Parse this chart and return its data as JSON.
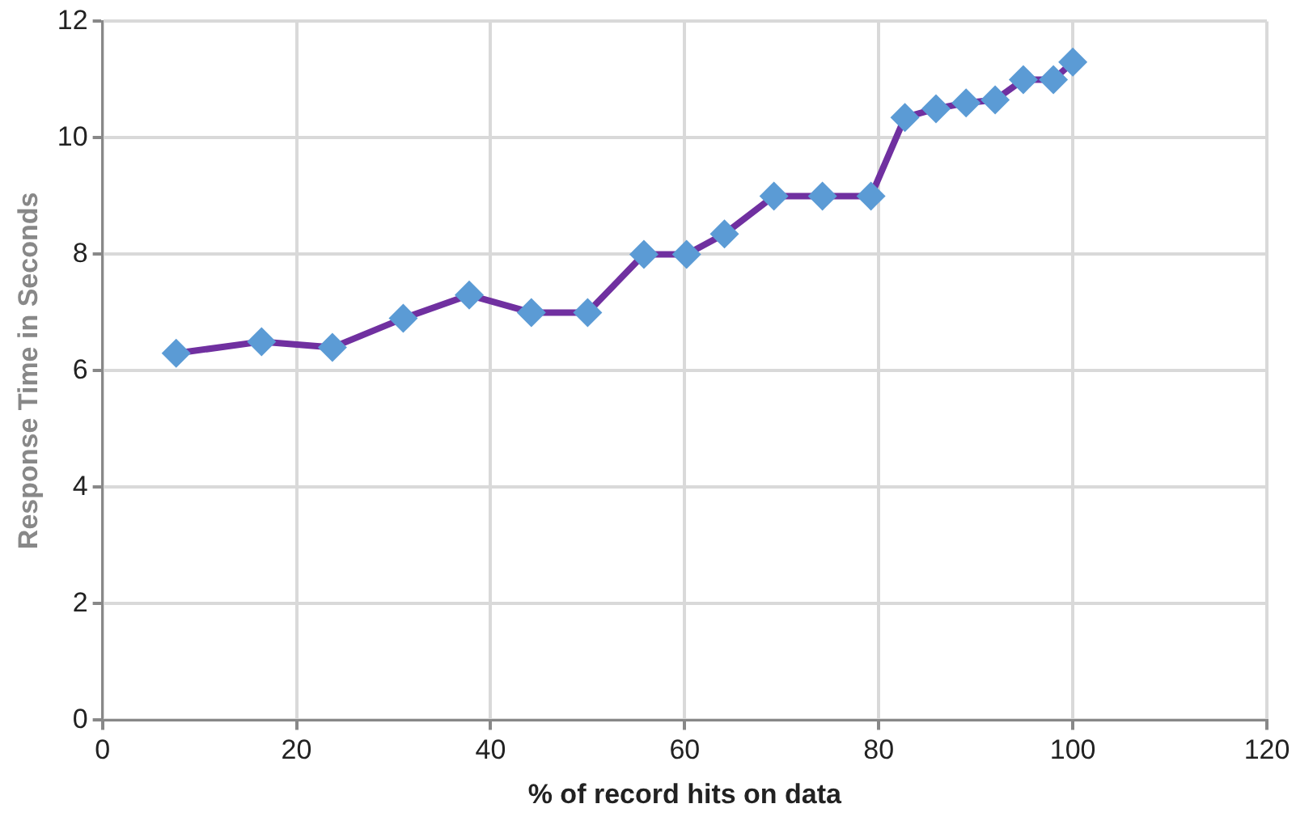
{
  "chart_data": {
    "type": "line",
    "xlabel": "% of record hits on data",
    "ylabel": "Response Time in Seconds",
    "x": [
      7.6,
      16.4,
      23.7,
      31,
      37.8,
      44.2,
      50,
      55.8,
      60.2,
      64.1,
      69.2,
      74.2,
      79.2,
      82.7,
      85.9,
      89,
      92,
      94.9,
      98,
      100
    ],
    "series": [
      {
        "color": "#7030a0",
        "values": [
          6.3,
          6.5,
          6.4,
          6.9,
          7.3,
          7,
          7,
          8,
          8,
          8.35,
          9,
          9,
          9,
          10.35,
          10.5,
          10.6,
          10.65,
          11,
          11,
          11.3
        ],
        "colors": [
          "#5b9bd5",
          "#5b9bd5",
          "#5b9bd5",
          "#5b9bd5",
          "#5b9bd5",
          "#5b9bd5",
          "#5b9bd5",
          "#5b9bd5",
          "#5b9bd5",
          "#5b9bd5",
          "#5b9bd5",
          "#5b9bd5",
          "#5b9bd5",
          "#5b9bd5",
          "#5b9bd5",
          "#5b9bd5",
          "#5b9bd5",
          "#5b9bd5",
          "#5b9bd5",
          "#5b9bd5"
        ]
      }
    ],
    "xlim": [
      0,
      120
    ],
    "xticks": [
      0,
      20,
      40,
      60,
      80,
      100,
      120
    ],
    "ylim": [
      0,
      12
    ],
    "yticks": [
      0,
      2,
      4,
      6,
      8,
      10,
      12
    ],
    "grid": true,
    "legend": false,
    "marker": "diamond",
    "line_style": "solid"
  }
}
